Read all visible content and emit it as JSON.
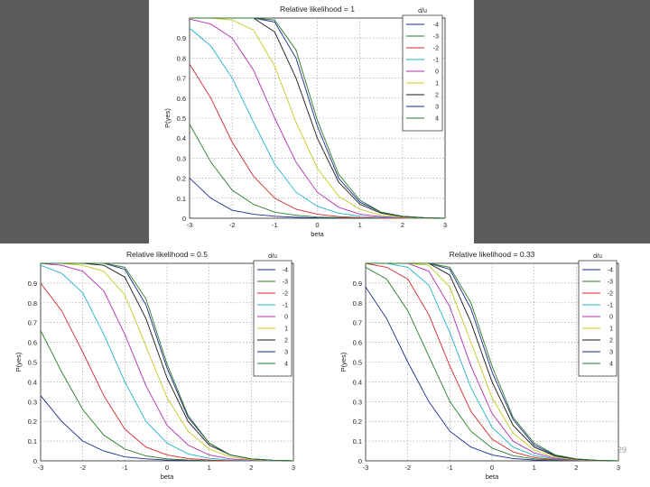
{
  "page_number": "29",
  "colors": [
    "#1a2a8c",
    "#2a7a2a",
    "#d0262c",
    "#22b4c8",
    "#b030b0",
    "#c8c820",
    "#1a1a1a",
    "#1a2a8c",
    "#2a7a2a"
  ],
  "chart_data": [
    {
      "type": "line",
      "title": "Relative likelihood = 1",
      "xlabel": "beta",
      "ylabel": "P(yes)",
      "xlim": [
        -3,
        3
      ],
      "ylim": [
        0,
        1
      ],
      "xticks": [
        "-3",
        "-2",
        "-1",
        "0",
        "1",
        "2",
        "3"
      ],
      "yticks": [
        "0",
        "0.1",
        "0.2",
        "0.3",
        "0.4",
        "0.5",
        "0.6",
        "0.7",
        "0.8",
        "0.9"
      ],
      "grid": true,
      "legend_title": "d/u",
      "legend_position": "top-right",
      "legend_labels": [
        "-4",
        "-3",
        "-2",
        "-1",
        "0",
        "1",
        "2",
        "3",
        "4"
      ],
      "x": [
        -3,
        -2.5,
        -2,
        -1.5,
        -1,
        -0.5,
        0,
        0.5,
        1,
        1.5,
        2,
        2.5,
        3
      ],
      "series": [
        {
          "name": "-4",
          "values": [
            0.2,
            0.1,
            0.04,
            0.02,
            0.01,
            0.005,
            0.002,
            0.001,
            0,
            0,
            0,
            0,
            0
          ]
        },
        {
          "name": "-3",
          "values": [
            0.47,
            0.28,
            0.14,
            0.07,
            0.03,
            0.015,
            0.006,
            0.003,
            0.001,
            0,
            0,
            0,
            0
          ]
        },
        {
          "name": "-2",
          "values": [
            0.77,
            0.6,
            0.38,
            0.21,
            0.1,
            0.045,
            0.02,
            0.008,
            0.003,
            0.001,
            0,
            0,
            0
          ]
        },
        {
          "name": "-1",
          "values": [
            0.95,
            0.86,
            0.7,
            0.48,
            0.27,
            0.13,
            0.06,
            0.025,
            0.01,
            0.004,
            0.001,
            0,
            0
          ]
        },
        {
          "name": "0",
          "values": [
            0.995,
            0.97,
            0.9,
            0.74,
            0.5,
            0.28,
            0.13,
            0.055,
            0.02,
            0.008,
            0.002,
            0.001,
            0
          ]
        },
        {
          "name": "1",
          "values": [
            1,
            1,
            0.99,
            0.94,
            0.76,
            0.48,
            0.25,
            0.11,
            0.045,
            0.015,
            0.005,
            0.001,
            0
          ]
        },
        {
          "name": "2",
          "values": [
            1,
            1,
            1,
            1,
            0.93,
            0.7,
            0.4,
            0.18,
            0.07,
            0.025,
            0.008,
            0.002,
            0
          ]
        },
        {
          "name": "3",
          "values": [
            1,
            1,
            1,
            1,
            0.98,
            0.8,
            0.46,
            0.2,
            0.08,
            0.03,
            0.01,
            0.003,
            0
          ]
        },
        {
          "name": "4",
          "values": [
            1,
            1,
            1,
            1,
            0.99,
            0.84,
            0.49,
            0.22,
            0.09,
            0.03,
            0.01,
            0.003,
            0
          ]
        }
      ]
    },
    {
      "type": "line",
      "title": "Relative likelihood = 0.5",
      "xlabel": "beta",
      "ylabel": "P(yes)",
      "xlim": [
        -3,
        3
      ],
      "ylim": [
        0,
        1
      ],
      "xticks": [
        "-3",
        "-2",
        "-1",
        "0",
        "1",
        "2",
        "3"
      ],
      "yticks": [
        "0",
        "0.1",
        "0.2",
        "0.3",
        "0.4",
        "0.5",
        "0.6",
        "0.7",
        "0.8",
        "0.9"
      ],
      "grid": true,
      "legend_title": "d/u",
      "legend_position": "top-right",
      "legend_labels": [
        "-4",
        "-3",
        "-2",
        "-1",
        "0",
        "1",
        "2",
        "3",
        "4"
      ],
      "x": [
        -3,
        -2.5,
        -2,
        -1.5,
        -1,
        -0.5,
        0,
        0.5,
        1,
        1.5,
        2,
        2.5,
        3
      ],
      "series": [
        {
          "name": "-4",
          "values": [
            0.33,
            0.2,
            0.1,
            0.05,
            0.02,
            0.01,
            0.004,
            0.002,
            0,
            0,
            0,
            0,
            0
          ]
        },
        {
          "name": "-3",
          "values": [
            0.66,
            0.45,
            0.26,
            0.13,
            0.06,
            0.025,
            0.01,
            0.004,
            0.001,
            0,
            0,
            0,
            0
          ]
        },
        {
          "name": "-2",
          "values": [
            0.9,
            0.76,
            0.55,
            0.33,
            0.16,
            0.07,
            0.03,
            0.012,
            0.004,
            0.001,
            0,
            0,
            0
          ]
        },
        {
          "name": "-1",
          "values": [
            0.99,
            0.95,
            0.85,
            0.64,
            0.4,
            0.2,
            0.09,
            0.035,
            0.013,
            0.004,
            0.001,
            0,
            0
          ]
        },
        {
          "name": "0",
          "values": [
            1,
            0.99,
            0.96,
            0.86,
            0.64,
            0.38,
            0.18,
            0.08,
            0.03,
            0.01,
            0.003,
            0.001,
            0
          ]
        },
        {
          "name": "1",
          "values": [
            1,
            1,
            0.99,
            0.96,
            0.84,
            0.58,
            0.32,
            0.15,
            0.06,
            0.02,
            0.006,
            0.002,
            0
          ]
        },
        {
          "name": "2",
          "values": [
            1,
            1,
            1,
            0.99,
            0.93,
            0.72,
            0.42,
            0.2,
            0.08,
            0.03,
            0.01,
            0.003,
            0
          ]
        },
        {
          "name": "3",
          "values": [
            1,
            1,
            1,
            1,
            0.97,
            0.79,
            0.47,
            0.22,
            0.09,
            0.03,
            0.01,
            0.003,
            0
          ]
        },
        {
          "name": "4",
          "values": [
            1,
            1,
            1,
            1,
            0.98,
            0.82,
            0.49,
            0.23,
            0.09,
            0.03,
            0.01,
            0.003,
            0
          ]
        }
      ]
    },
    {
      "type": "line",
      "title": "Relative likelihood = 0.33",
      "xlabel": "beta",
      "ylabel": "P(yes)",
      "xlim": [
        -3,
        3
      ],
      "ylim": [
        0,
        1
      ],
      "xticks": [
        "-3",
        "-2",
        "-1",
        "0",
        "1",
        "2",
        "3"
      ],
      "yticks": [
        "0",
        "0.1",
        "0.2",
        "0.3",
        "0.4",
        "0.5",
        "0.6",
        "0.7",
        "0.8",
        "0.9"
      ],
      "grid": true,
      "legend_title": "d/u",
      "legend_position": "top-right",
      "legend_labels": [
        "-4",
        "-3",
        "-2",
        "-1",
        "0",
        "1",
        "2",
        "3",
        "4"
      ],
      "x": [
        -3,
        -2.5,
        -2,
        -1.5,
        -1,
        -0.5,
        0,
        0.5,
        1,
        1.5,
        2,
        2.5,
        3
      ],
      "series": [
        {
          "name": "-4",
          "values": [
            0.88,
            0.72,
            0.5,
            0.3,
            0.15,
            0.07,
            0.03,
            0.012,
            0.004,
            0.001,
            0,
            0,
            0
          ]
        },
        {
          "name": "-3",
          "values": [
            0.98,
            0.92,
            0.76,
            0.53,
            0.3,
            0.15,
            0.065,
            0.026,
            0.01,
            0.003,
            0.001,
            0,
            0
          ]
        },
        {
          "name": "-2",
          "values": [
            1,
            0.98,
            0.92,
            0.74,
            0.48,
            0.25,
            0.11,
            0.045,
            0.017,
            0.006,
            0.002,
            0,
            0
          ]
        },
        {
          "name": "-1",
          "values": [
            1,
            1,
            0.98,
            0.89,
            0.65,
            0.37,
            0.17,
            0.07,
            0.027,
            0.009,
            0.003,
            0.001,
            0
          ]
        },
        {
          "name": "0",
          "values": [
            1,
            1,
            1,
            0.96,
            0.78,
            0.48,
            0.24,
            0.1,
            0.04,
            0.013,
            0.004,
            0.001,
            0
          ]
        },
        {
          "name": "1",
          "values": [
            1,
            1,
            1,
            0.99,
            0.88,
            0.6,
            0.32,
            0.14,
            0.055,
            0.018,
            0.006,
            0.001,
            0
          ]
        },
        {
          "name": "2",
          "values": [
            1,
            1,
            1,
            1,
            0.94,
            0.7,
            0.4,
            0.18,
            0.07,
            0.024,
            0.008,
            0.002,
            0
          ]
        },
        {
          "name": "3",
          "values": [
            1,
            1,
            1,
            1,
            0.97,
            0.77,
            0.45,
            0.21,
            0.08,
            0.028,
            0.009,
            0.002,
            0
          ]
        },
        {
          "name": "4",
          "values": [
            1,
            1,
            1,
            1,
            0.98,
            0.8,
            0.48,
            0.22,
            0.09,
            0.03,
            0.01,
            0.003,
            0
          ]
        }
      ]
    }
  ]
}
